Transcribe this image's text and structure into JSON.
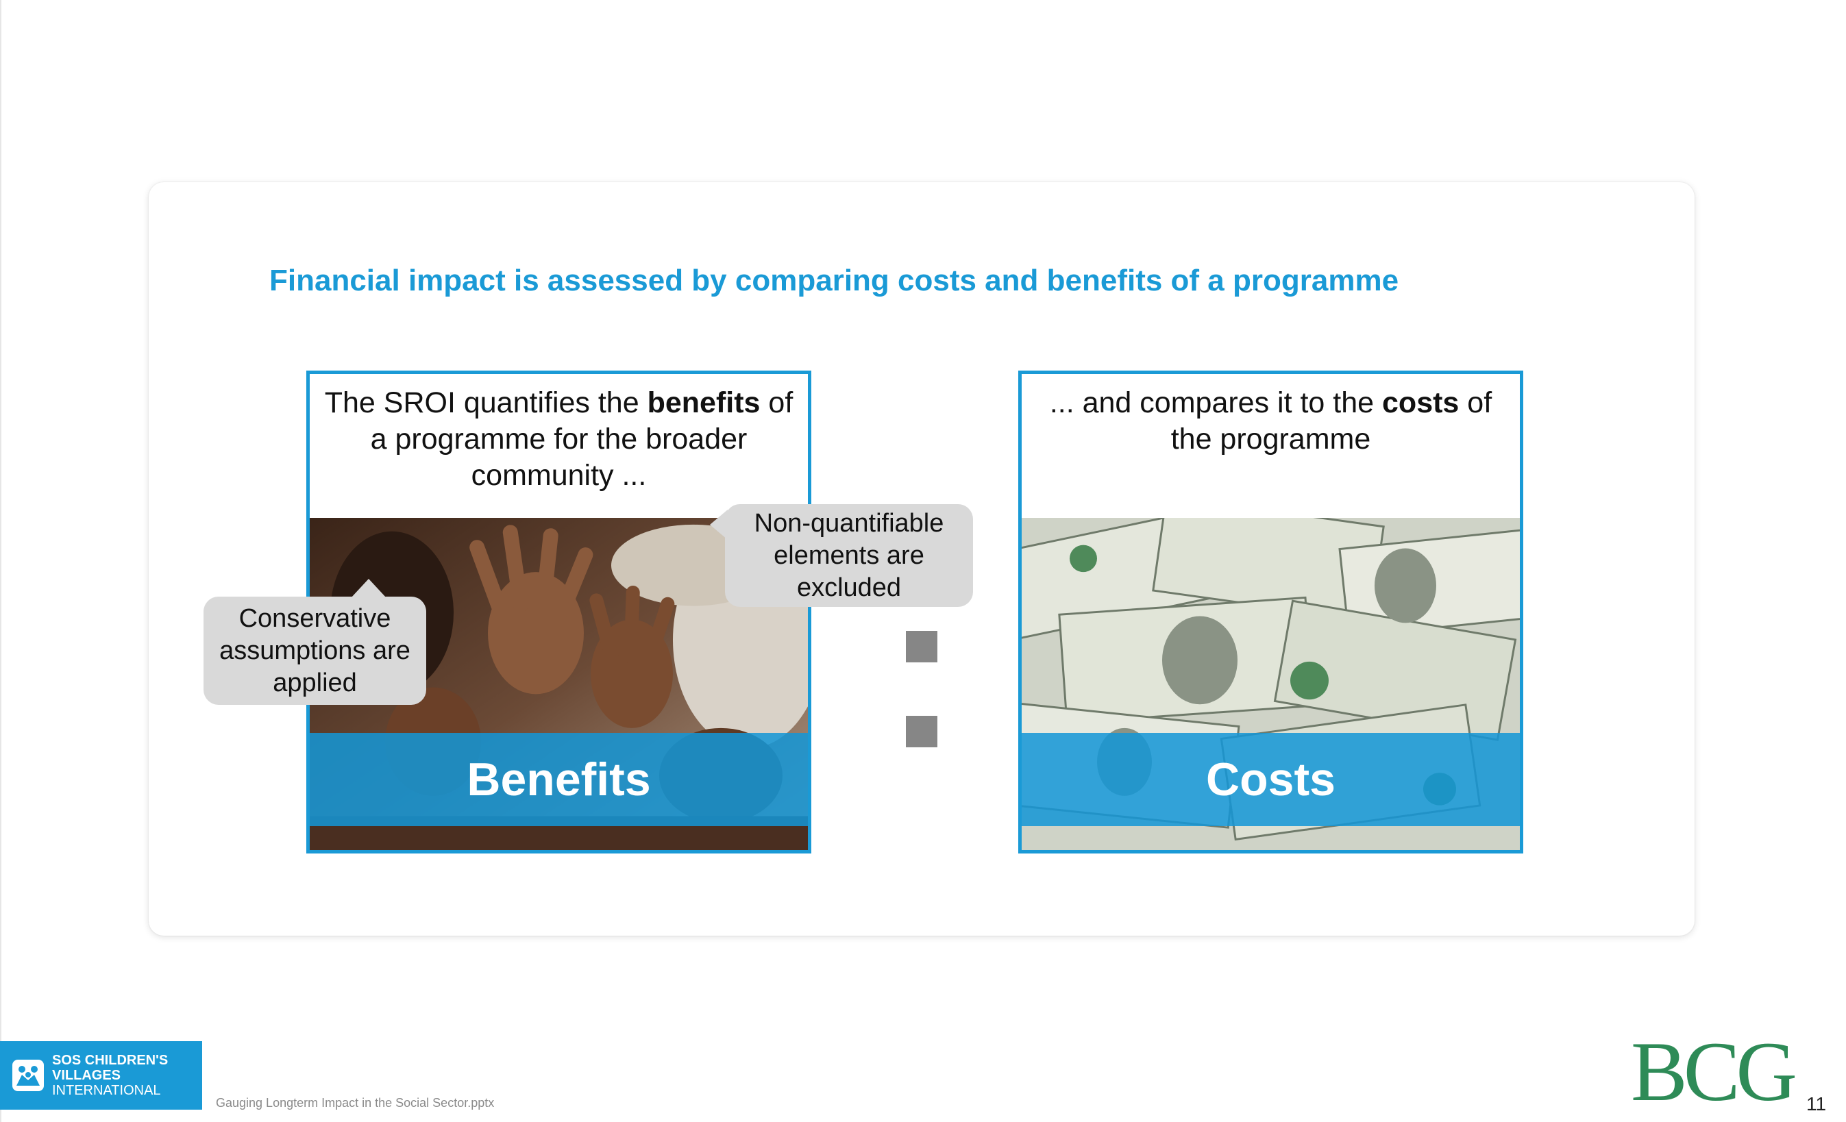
{
  "slide": {
    "title": "Financial impact is assessed by comparing costs and benefits of a programme"
  },
  "left_panel": {
    "text_before": "The SROI quantifies the ",
    "text_bold": "benefits",
    "text_after": " of a programme for the broader community ...",
    "band_label": "Benefits"
  },
  "right_panel": {
    "text_before": "... and compares it to the ",
    "text_bold": "costs",
    "text_after": " of the programme",
    "band_label": "Costs"
  },
  "callouts": {
    "left": "Conservative assumptions are applied",
    "right": "Non-quantifiable elements are excluded"
  },
  "footer": {
    "logo_line1": "SOS CHILDREN'S",
    "logo_line2": "VILLAGES",
    "logo_line3": "INTERNATIONAL",
    "file_name": "Gauging Longterm Impact in the Social Sector.pptx",
    "brand": "BCG",
    "page_number": "11"
  },
  "colors": {
    "accent": "#1a9ad6",
    "callout_bg": "#d9d9d9",
    "operator": "#868686",
    "brand_green": "#2e8b57"
  },
  "icons": [
    "sos-children-icon",
    "hands-photo",
    "money-photo"
  ]
}
